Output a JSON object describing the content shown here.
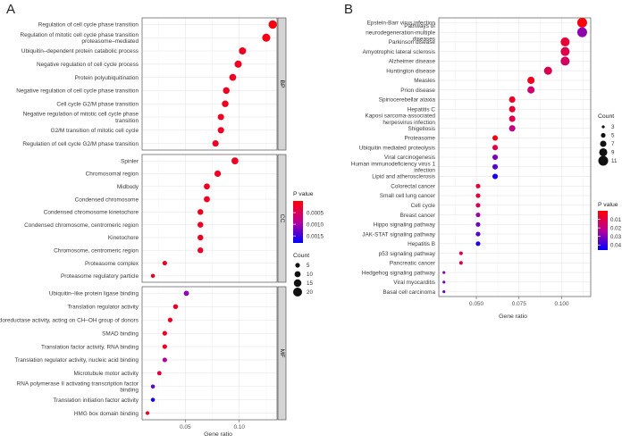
{
  "chart_data": [
    {
      "panel": "A",
      "type": "scatter",
      "xlabel": "Gene ratio",
      "xlim": [
        0.01,
        0.135
      ],
      "xticks": [
        0.05,
        0.1
      ],
      "x_tick_labels": [
        "0.05",
        "0.10"
      ],
      "facets": [
        {
          "name": "BP",
          "rows": [
            {
              "term": "Regulation of cell cycle phase transition",
              "x": 0.131,
              "count": 18,
              "p": 8e-05
            },
            {
              "term": "Regulation of mitotic cell cycle phase transition proteasome–mediated",
              "x": 0.125,
              "count": 17,
              "p": 0.00012
            },
            {
              "term": "Ubiquitin–dependent protein catabolic process",
              "x": 0.103,
              "count": 14,
              "p": 0.0002
            },
            {
              "term": "Negative regulation of cell cycle process",
              "x": 0.099,
              "count": 14,
              "p": 0.0002
            },
            {
              "term": "Protein polyubiquitination",
              "x": 0.094,
              "count": 13,
              "p": 0.0002
            },
            {
              "term": "Negative regulation of cell cycle phase transition",
              "x": 0.088,
              "count": 12,
              "p": 0.0002
            },
            {
              "term": "Cell cycle G2/M phase transition",
              "x": 0.087,
              "count": 12,
              "p": 0.0002
            },
            {
              "term": "Negative regulation of mitotic cell cycle phase transition",
              "x": 0.083,
              "count": 11,
              "p": 0.0002
            },
            {
              "term": "G2/M transition of mitotic cell cycle",
              "x": 0.083,
              "count": 11,
              "p": 0.0002
            },
            {
              "term": "Regulation of cell cycle G2/M phase transition",
              "x": 0.078,
              "count": 11,
              "p": 0.0002
            }
          ]
        },
        {
          "name": "CC",
          "rows": [
            {
              "term": "Spinler",
              "x": 0.096,
              "count": 13,
              "p": 0.0002
            },
            {
              "term": "Chromosomal region",
              "x": 0.08,
              "count": 11,
              "p": 0.0002
            },
            {
              "term": "Midbody",
              "x": 0.07,
              "count": 10,
              "p": 0.0002
            },
            {
              "term": "Condensed chromosome",
              "x": 0.07,
              "count": 10,
              "p": 0.0002
            },
            {
              "term": "Condensed chromosome kinetochore",
              "x": 0.064,
              "count": 9,
              "p": 0.0002
            },
            {
              "term": "Condensed chromosome, centromeric region",
              "x": 0.064,
              "count": 9,
              "p": 0.0002
            },
            {
              "term": "Kinetochore",
              "x": 0.064,
              "count": 9,
              "p": 0.0002
            },
            {
              "term": "Chromosome, centromeric region",
              "x": 0.064,
              "count": 9,
              "p": 0.0002
            },
            {
              "term": "Proteasome complex",
              "x": 0.031,
              "count": 5,
              "p": 0.0002
            },
            {
              "term": "Proteasome regulatory particle",
              "x": 0.02,
              "count": 3,
              "p": 0.0002
            }
          ]
        },
        {
          "name": "MF",
          "rows": [
            {
              "term": "Ubiquitin–like protein ligase binding",
              "x": 0.051,
              "count": 7,
              "p": 0.0011
            },
            {
              "term": "Translation regulator activity",
              "x": 0.041,
              "count": 6,
              "p": 0.0002
            },
            {
              "term": "Oxidoreductase activity, acting on CH–OH group of donors",
              "x": 0.036,
              "count": 5,
              "p": 0.0002
            },
            {
              "term": "SMAD binding",
              "x": 0.031,
              "count": 5,
              "p": 0.0002
            },
            {
              "term": "Translation factor activity, RNA binding",
              "x": 0.031,
              "count": 5,
              "p": 0.0002
            },
            {
              "term": "Translation regulator activity, nucleic acid binding",
              "x": 0.031,
              "count": 5,
              "p": 0.0009
            },
            {
              "term": "Microtubule motor activity",
              "x": 0.026,
              "count": 4,
              "p": 0.0004
            },
            {
              "term": "RNA polymerase II activating transcription factor binding",
              "x": 0.02,
              "count": 3,
              "p": 0.0013
            },
            {
              "term": "Translation initiation factor activity",
              "x": 0.02,
              "count": 3,
              "p": 0.0017
            },
            {
              "term": "HMG box domain binding",
              "x": 0.015,
              "count": 2,
              "p": 0.0002
            }
          ]
        }
      ],
      "legend_p": {
        "title": "P value",
        "min": 0.0,
        "max": 0.0018,
        "ticks": [
          0.0005,
          0.001,
          0.0015
        ],
        "tick_labels": [
          "0.0005",
          "0.0010",
          "0.0015"
        ],
        "colors": [
          "#ff0000",
          "#0000ff"
        ]
      },
      "legend_size": {
        "title": "Count",
        "values": [
          5,
          10,
          15,
          20
        ],
        "labels": [
          "5",
          "10",
          "15",
          "20"
        ]
      }
    },
    {
      "panel": "B",
      "type": "scatter",
      "xlabel": "Gene ratio",
      "xlim": [
        0.028,
        0.117
      ],
      "xticks": [
        0.05,
        0.075,
        0.1
      ],
      "x_tick_labels": [
        "0.050",
        "0.075",
        "0.100"
      ],
      "rows": [
        {
          "term": "Epstein-Barr virus infection",
          "x": 0.112,
          "count": 11,
          "p": 0.0012
        },
        {
          "term": "Pathways of neurodegeneration-multiple diseases",
          "x": 0.112,
          "count": 11,
          "p": 0.028
        },
        {
          "term": "Parkinson disease",
          "x": 0.102,
          "count": 10,
          "p": 0.008
        },
        {
          "term": "Amyotrophic lateral sclerosis",
          "x": 0.102,
          "count": 10,
          "p": 0.011
        },
        {
          "term": "Alzheimer disease",
          "x": 0.102,
          "count": 10,
          "p": 0.014
        },
        {
          "term": "Huntington disease",
          "x": 0.092,
          "count": 9,
          "p": 0.012
        },
        {
          "term": "Measles",
          "x": 0.082,
          "count": 8,
          "p": 0.004
        },
        {
          "term": "Prion disease",
          "x": 0.082,
          "count": 8,
          "p": 0.016
        },
        {
          "term": "Spinocerebellar ataxia",
          "x": 0.071,
          "count": 7,
          "p": 0.006
        },
        {
          "term": "Hepatitis C",
          "x": 0.071,
          "count": 7,
          "p": 0.007
        },
        {
          "term": "Kaposi sarcoma-associated herpesvirus infection",
          "x": 0.071,
          "count": 7,
          "p": 0.011
        },
        {
          "term": "Shigellosis",
          "x": 0.071,
          "count": 7,
          "p": 0.02
        },
        {
          "term": "Proteasome",
          "x": 0.061,
          "count": 6,
          "p": 0.003
        },
        {
          "term": "Ubiquitin mediated proteolysis",
          "x": 0.061,
          "count": 6,
          "p": 0.009
        },
        {
          "term": "Viral carcinogenesis",
          "x": 0.061,
          "count": 6,
          "p": 0.03
        },
        {
          "term": "Human immunodeficiency virus 1 infection",
          "x": 0.061,
          "count": 6,
          "p": 0.035
        },
        {
          "term": "Lipid and atherosclerosis",
          "x": 0.061,
          "count": 6,
          "p": 0.043
        },
        {
          "term": "Colorectal cancer",
          "x": 0.051,
          "count": 5,
          "p": 0.007
        },
        {
          "term": "Small cell lung cancer",
          "x": 0.051,
          "count": 5,
          "p": 0.008
        },
        {
          "term": "Cell cycle",
          "x": 0.051,
          "count": 5,
          "p": 0.012
        },
        {
          "term": "Breast cancer",
          "x": 0.051,
          "count": 5,
          "p": 0.026
        },
        {
          "term": "Hippo signaling pathway",
          "x": 0.051,
          "count": 5,
          "p": 0.032
        },
        {
          "term": "JAK-STAT signaling pathway",
          "x": 0.051,
          "count": 5,
          "p": 0.035
        },
        {
          "term": "Hepatitis B",
          "x": 0.051,
          "count": 5,
          "p": 0.042
        },
        {
          "term": "p53 signaling pathway",
          "x": 0.041,
          "count": 4,
          "p": 0.012
        },
        {
          "term": "Pancreatic cancer",
          "x": 0.041,
          "count": 4,
          "p": 0.012
        },
        {
          "term": "Hedgehog signaling pathway",
          "x": 0.031,
          "count": 3,
          "p": 0.028
        },
        {
          "term": "Viral myocarditis",
          "x": 0.031,
          "count": 3,
          "p": 0.03
        },
        {
          "term": "Basal cell carcinoma",
          "x": 0.031,
          "count": 3,
          "p": 0.032
        }
      ],
      "legend_size": {
        "title": "Count",
        "values": [
          3,
          5,
          7,
          9,
          11
        ],
        "labels": [
          "3",
          "5",
          "7",
          "9",
          "11"
        ]
      },
      "legend_p": {
        "title": "P value",
        "min": 0.0,
        "max": 0.046,
        "ticks": [
          0.01,
          0.02,
          0.03,
          0.04
        ],
        "tick_labels": [
          "0.01",
          "0.02",
          "0.03",
          "0.04"
        ],
        "colors": [
          "#ff0000",
          "#0000ff"
        ]
      }
    }
  ]
}
